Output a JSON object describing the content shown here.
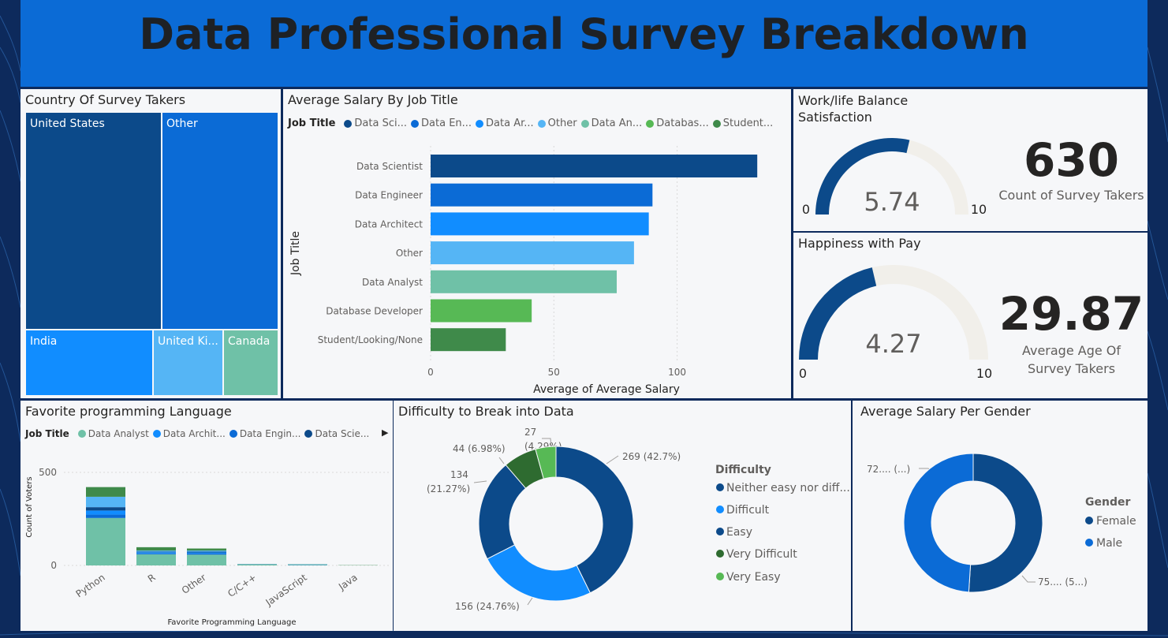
{
  "header": {
    "title": "Data Professional Survey Breakdown"
  },
  "colors": {
    "navy": "#0c4a8a",
    "blue": "#0b6bd6",
    "bright_blue": "#118dff",
    "light_blue": "#55b5f5",
    "teal": "#6fc1a7",
    "green": "#57b955",
    "dark_green": "#3f8a4a",
    "gauge_track": "#f1efea"
  },
  "country": {
    "title": "Country Of Survey Takers",
    "cells": [
      {
        "label": "United States",
        "color": "#0c4a8a"
      },
      {
        "label": "Other",
        "color": "#0b6bd6"
      },
      {
        "label": "India",
        "color": "#118dff"
      },
      {
        "label": "United Ki...",
        "color": "#55b5f5"
      },
      {
        "label": "Canada",
        "color": "#6fc1a7"
      }
    ]
  },
  "salary_by_job": {
    "title": "Average Salary By Job Title",
    "legend_title": "Job Title",
    "legend": [
      {
        "label": "Data Sci...",
        "color": "#0c4a8a"
      },
      {
        "label": "Data En...",
        "color": "#0b6bd6"
      },
      {
        "label": "Data Ar...",
        "color": "#118dff"
      },
      {
        "label": "Other",
        "color": "#55b5f5"
      },
      {
        "label": "Data An...",
        "color": "#6fc1a7"
      },
      {
        "label": "Databas...",
        "color": "#57b955"
      },
      {
        "label": "Student...",
        "color": "#3f8a4a"
      }
    ]
  },
  "work_life": {
    "title": "Work/life Balance Satisfaction",
    "value": "5.74",
    "min": "0",
    "max": "10",
    "fraction": 0.574
  },
  "happiness": {
    "title": "Happiness with Pay",
    "value": "4.27",
    "min": "0",
    "max": "10",
    "fraction": 0.427
  },
  "kpi_count": {
    "value": "630",
    "label": "Count of Survey Takers"
  },
  "kpi_age": {
    "value": "29.87",
    "label_line1": "Average Age Of",
    "label_line2": "Survey Takers"
  },
  "languages": {
    "title": "Favorite programming Language",
    "legend_title": "Job Title",
    "legend": [
      {
        "label": "Data Analyst",
        "color": "#6fc1a7"
      },
      {
        "label": "Data Archit...",
        "color": "#118dff"
      },
      {
        "label": "Data Engin...",
        "color": "#0b6bd6"
      },
      {
        "label": "Data Scie...",
        "color": "#0c4a8a"
      }
    ],
    "more_arrow": "▶"
  },
  "difficulty": {
    "title": "Difficulty to Break into Data",
    "legend_title": "Difficulty",
    "legend": [
      {
        "label": "Neither easy nor diff...",
        "color": "#0c4a8a"
      },
      {
        "label": "Difficult",
        "color": "#118dff"
      },
      {
        "label": "Easy",
        "color": "#0c4a8a"
      },
      {
        "label": "Very Difficult",
        "color": "#2e6b30"
      },
      {
        "label": "Very Easy",
        "color": "#57b955"
      }
    ],
    "labels": {
      "neither": "269 (42.7%)",
      "difficult": "156 (24.76%)",
      "easy_1": "134",
      "easy_2": "(21.27%)",
      "very_difficult": "44 (6.98%)",
      "very_easy_1": "27",
      "very_easy_2": "(4.29%)"
    }
  },
  "gender": {
    "title": "Average Salary Per Gender",
    "legend_title": "Gender",
    "legend": [
      {
        "label": "Female",
        "color": "#0c4a8a"
      },
      {
        "label": "Male",
        "color": "#0b6bd6"
      }
    ],
    "labels": {
      "male": "72.... (...)",
      "female": "75.... (5...)"
    }
  },
  "chart_data": [
    {
      "type": "bar",
      "orientation": "horizontal",
      "title": "Average Salary By Job Title",
      "xlabel": "Average of Average Salary",
      "ylabel": "Job Title",
      "categories": [
        "Data Scientist",
        "Data Engineer",
        "Data Architect",
        "Other",
        "Data Analyst",
        "Database Developer",
        "Student/Looking/None"
      ],
      "values": [
        132.5,
        90,
        88.5,
        82.5,
        75.5,
        41,
        30.5
      ],
      "colors": [
        "#0c4a8a",
        "#0b6bd6",
        "#118dff",
        "#55b5f5",
        "#6fc1a7",
        "#57b955",
        "#3f8a4a"
      ],
      "xticks": [
        "0",
        "50",
        "100"
      ],
      "xlim": [
        0,
        135
      ]
    },
    {
      "type": "bar",
      "stacked": true,
      "title": "Favorite programming Language",
      "xlabel": "Favorite Programming Language",
      "ylabel": "Count of Voters",
      "categories": [
        "Python",
        "R",
        "Other",
        "C/C++",
        "JavaScript",
        "Java"
      ],
      "series": [
        {
          "name": "Data Analyst",
          "color": "#6fc1a7",
          "values": [
            255,
            60,
            58,
            5,
            3,
            1
          ]
        },
        {
          "name": "Data Architect",
          "color": "#118dff",
          "values": [
            22,
            6,
            5,
            0,
            1,
            0
          ]
        },
        {
          "name": "Data Engineer",
          "color": "#0b6bd6",
          "values": [
            18,
            5,
            7,
            1,
            1,
            0
          ]
        },
        {
          "name": "Data Scientist",
          "color": "#0c4a8a",
          "values": [
            18,
            3,
            4,
            0,
            0,
            0
          ]
        },
        {
          "name": "Other",
          "color": "#55b5f5",
          "values": [
            56,
            6,
            6,
            1,
            1,
            0
          ]
        },
        {
          "name": "Student/Looking/None",
          "color": "#3f8a4a",
          "values": [
            52,
            18,
            11,
            1,
            1,
            1
          ]
        }
      ],
      "yticks": [
        "0",
        "500"
      ],
      "ylim": [
        0,
        500
      ]
    },
    {
      "type": "pie",
      "donut": true,
      "title": "Difficulty to Break into Data",
      "categories": [
        "Neither easy nor difficult",
        "Difficult",
        "Easy",
        "Very Difficult",
        "Very Easy"
      ],
      "values": [
        269,
        156,
        134,
        44,
        27
      ],
      "percents": [
        42.7,
        24.76,
        21.27,
        6.98,
        4.29
      ],
      "colors": [
        "#0c4a8a",
        "#118dff",
        "#0c4a8a",
        "#2e6b30",
        "#57b955"
      ]
    },
    {
      "type": "pie",
      "donut": true,
      "title": "Average Salary Per Gender",
      "categories": [
        "Female",
        "Male"
      ],
      "values": [
        75,
        72
      ],
      "colors": [
        "#0c4a8a",
        "#0b6bd6"
      ]
    },
    {
      "type": "gauge",
      "title": "Work/life Balance Satisfaction",
      "value": 5.74,
      "min": 0,
      "max": 10
    },
    {
      "type": "gauge",
      "title": "Happiness with Pay",
      "value": 4.27,
      "min": 0,
      "max": 10
    }
  ]
}
